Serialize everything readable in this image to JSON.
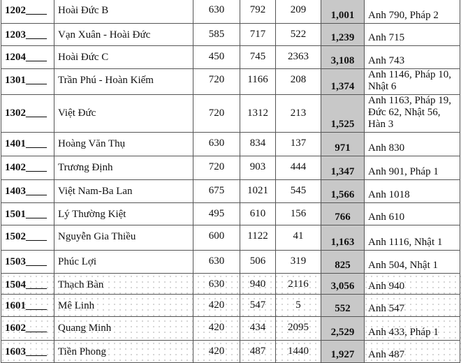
{
  "rows": [
    {
      "code": "1202____",
      "name": "Hoài Đức B",
      "c1": "630",
      "c2": "792",
      "c3": "209",
      "total": "1,001",
      "lang": "Anh 790, Pháp 2"
    },
    {
      "code": "1203____",
      "name": "Vạn Xuân - Hoài Đức",
      "c1": "585",
      "c2": "717",
      "c3": "522",
      "total": "1,239",
      "lang": "Anh 715"
    },
    {
      "code": "1204____",
      "name": "Hoài Đức C",
      "c1": "450",
      "c2": "745",
      "c3": "2363",
      "total": "3,108",
      "lang": "Anh 743"
    },
    {
      "code": "1301____",
      "name": "Trần Phú - Hoàn Kiếm",
      "c1": "720",
      "c2": "1166",
      "c3": "208",
      "total": "1,374",
      "lang": "Anh 1146, Pháp 10, Nhật 6"
    },
    {
      "code": "1302____",
      "name": "Việt Đức",
      "c1": "720",
      "c2": "1312",
      "c3": "213",
      "total": "1,525",
      "lang": "Anh 1163, Pháp 19, Đức 62, Nhật 56, Hàn 3"
    },
    {
      "code": "1401____",
      "name": "Hoàng Văn Thụ",
      "c1": "630",
      "c2": "834",
      "c3": "137",
      "total": "971",
      "lang": "Anh 830"
    },
    {
      "code": "1402____",
      "name": "Trương Định",
      "c1": "720",
      "c2": "903",
      "c3": "444",
      "total": "1,347",
      "lang": "Anh 901, Pháp 1"
    },
    {
      "code": "1403____",
      "name": "Việt Nam-Ba Lan",
      "c1": "675",
      "c2": "1021",
      "c3": "545",
      "total": "1,566",
      "lang": "Anh 1018"
    },
    {
      "code": "1501____",
      "name": "Lý Thường Kiệt",
      "c1": "495",
      "c2": "610",
      "c3": "156",
      "total": "766",
      "lang": "Anh 610"
    },
    {
      "code": "1502____",
      "name": "Nguyễn Gia Thiều",
      "c1": "600",
      "c2": "1122",
      "c3": "41",
      "total": "1,163",
      "lang": "Anh 1116, Nhật 1"
    },
    {
      "code": "1503____",
      "name": "Phúc Lợi",
      "c1": "630",
      "c2": "506",
      "c3": "319",
      "total": "825",
      "lang": "Anh 504, Nhật 1"
    },
    {
      "code": "1504____",
      "name": "Thạch Bàn",
      "c1": "630",
      "c2": "940",
      "c3": "2116",
      "total": "3,056",
      "lang": "Anh 940"
    },
    {
      "code": "1601____",
      "name": "Mê Linh",
      "c1": "420",
      "c2": "547",
      "c3": "5",
      "total": "552",
      "lang": "Anh 547"
    },
    {
      "code": "1602____",
      "name": "Quang Minh",
      "c1": "420",
      "c2": "434",
      "c3": "2095",
      "total": "2,529",
      "lang": "Anh 433, Pháp 1"
    },
    {
      "code": "1603____",
      "name": "Tiền Phong",
      "c1": "420",
      "c2": "487",
      "c3": "1440",
      "total": "1,927",
      "lang": "Anh 487"
    }
  ],
  "colors": {
    "total_column_bg": "#c8c8c8",
    "border": "#555555"
  }
}
